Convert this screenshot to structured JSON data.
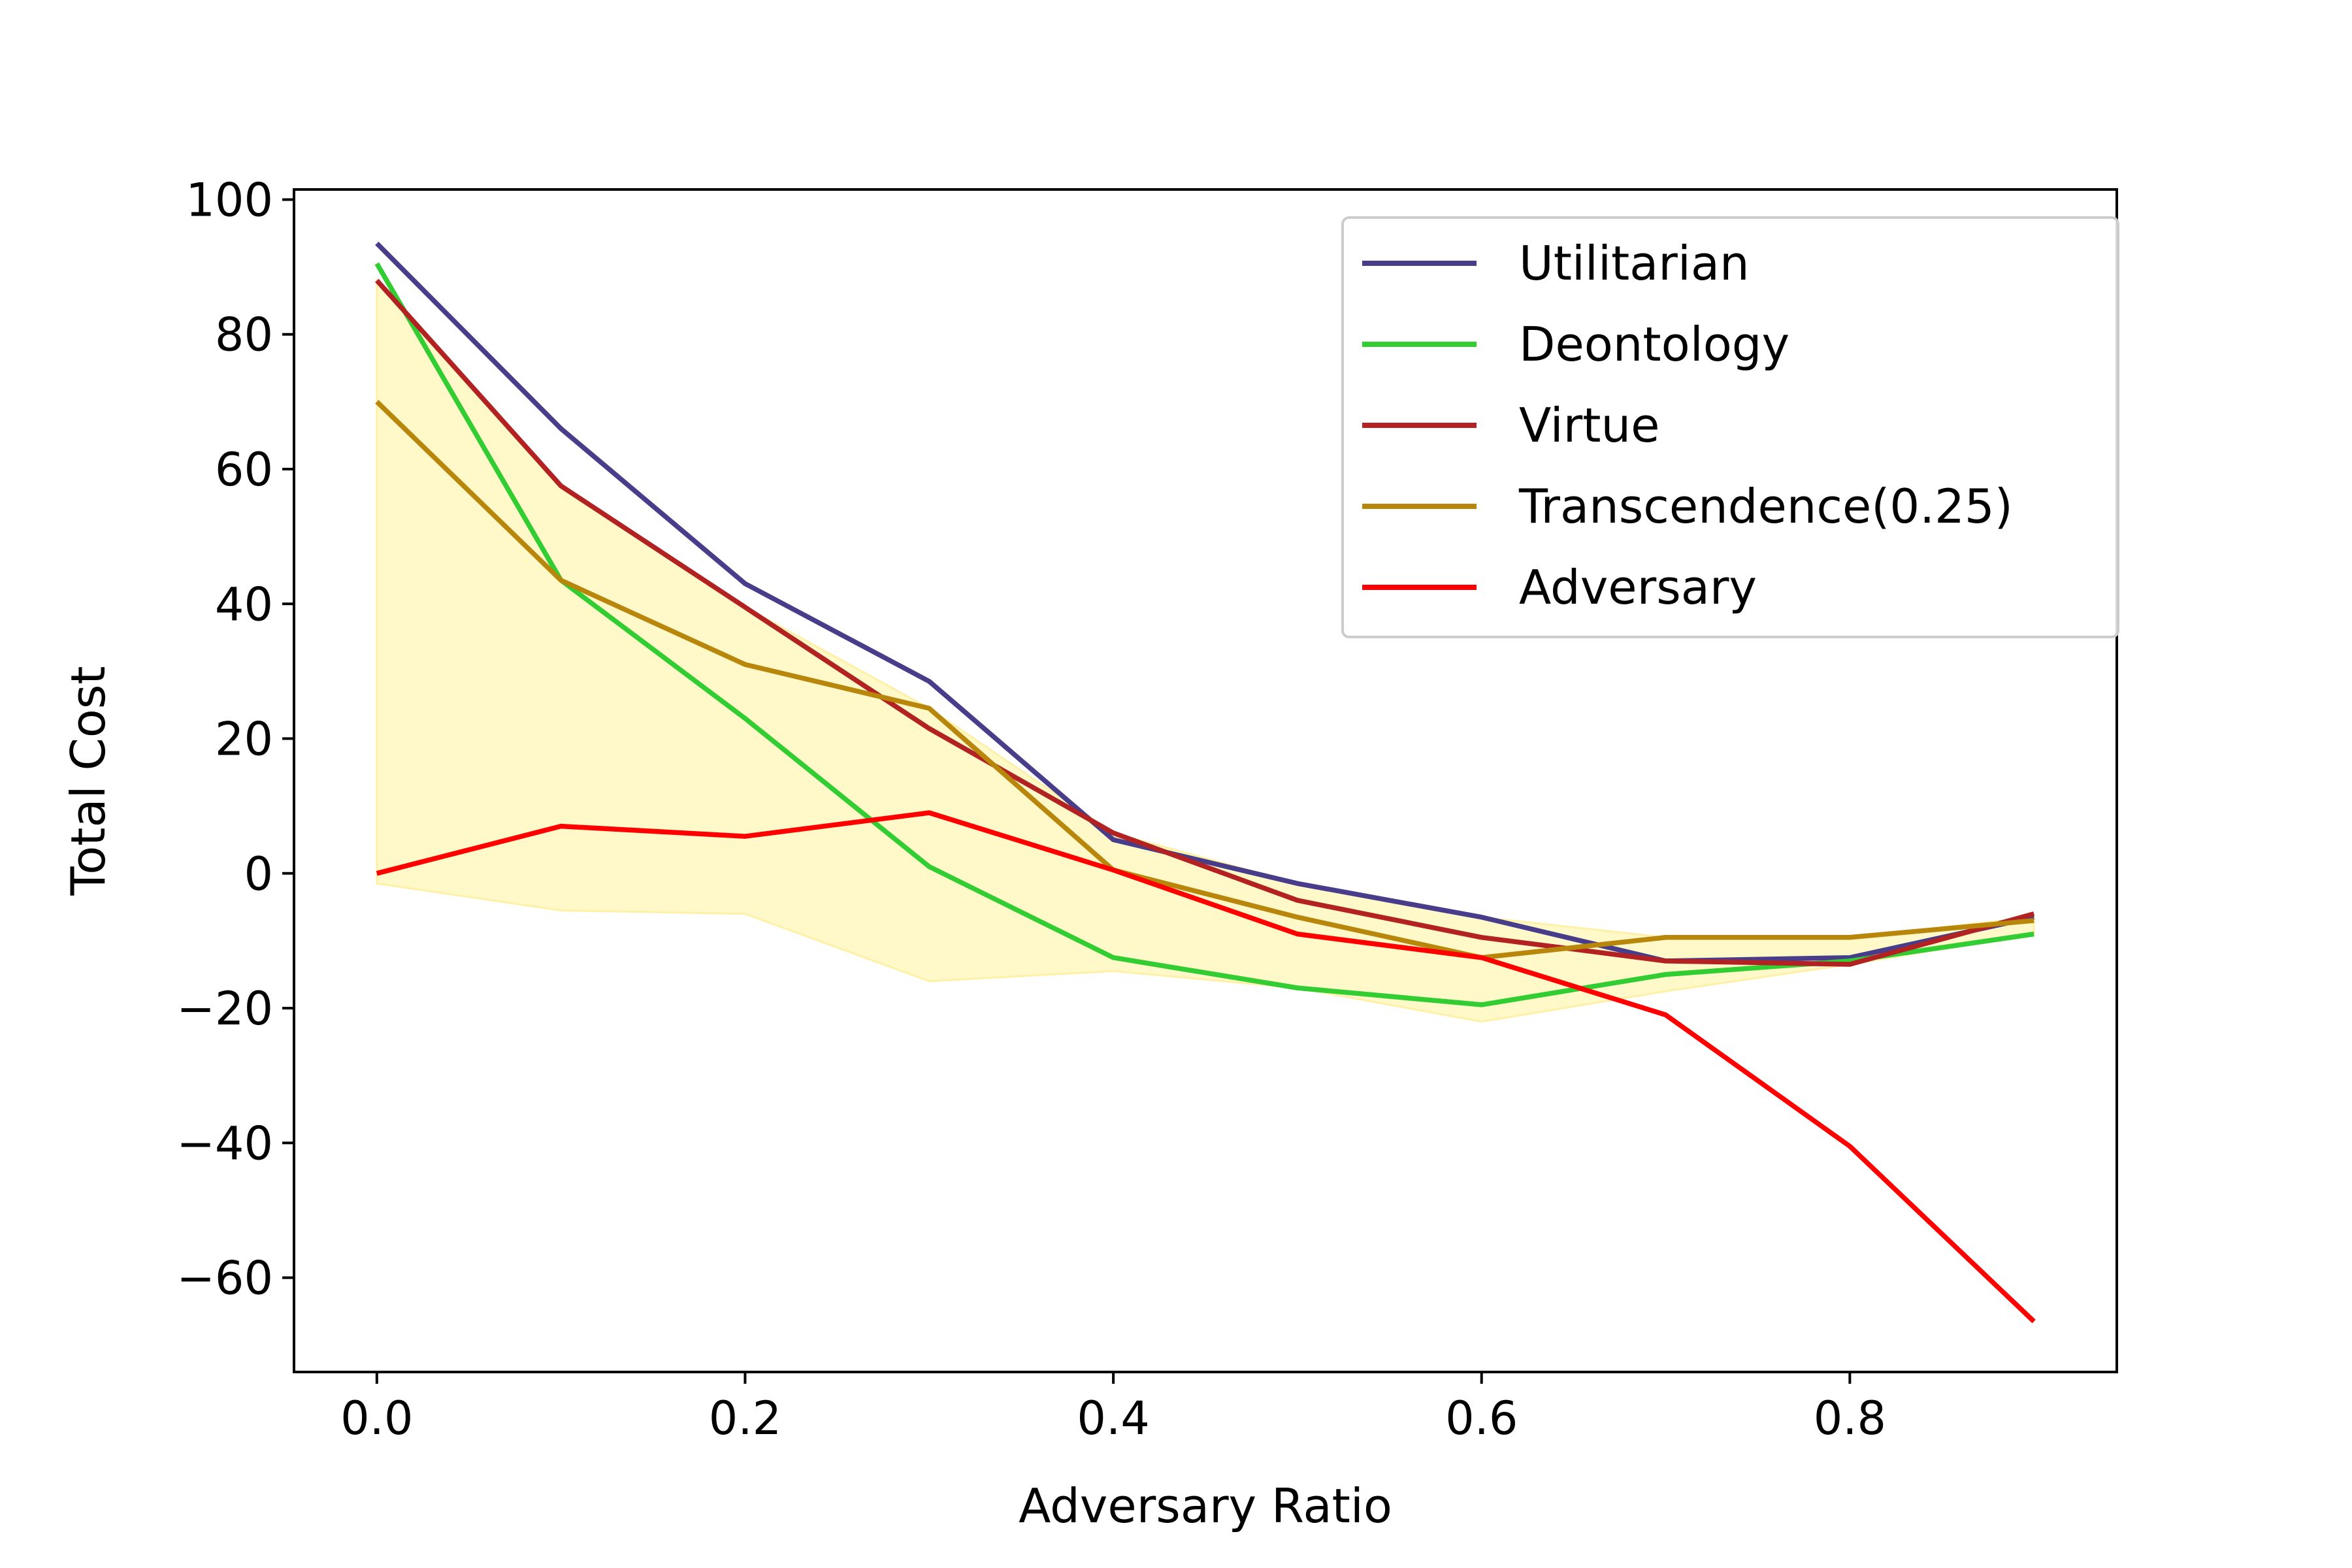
{
  "chart_data": {
    "type": "line",
    "title": "",
    "xlabel": "Adversary Ratio",
    "ylabel": "Total Cost",
    "xlim": [
      -0.045,
      0.945
    ],
    "ylim": [
      -74,
      101.5
    ],
    "grid": false,
    "legend_position": "top-right",
    "x": [
      0.0,
      0.1,
      0.2,
      0.3,
      0.4,
      0.5,
      0.6,
      0.7,
      0.8,
      0.9
    ],
    "x_ticks": [
      {
        "value": 0.0,
        "label": "0.0"
      },
      {
        "value": 0.2,
        "label": "0.2"
      },
      {
        "value": 0.4,
        "label": "0.4"
      },
      {
        "value": 0.6,
        "label": "0.6"
      },
      {
        "value": 0.8,
        "label": "0.8"
      }
    ],
    "y_ticks": [
      {
        "value": 100,
        "label": "100"
      },
      {
        "value": 80,
        "label": "80"
      },
      {
        "value": 60,
        "label": "60"
      },
      {
        "value": 40,
        "label": "40"
      },
      {
        "value": 20,
        "label": "20"
      },
      {
        "value": 0,
        "label": "0"
      },
      {
        "value": -20,
        "label": "−20"
      },
      {
        "value": -40,
        "label": "−40"
      },
      {
        "value": -60,
        "label": "−60"
      }
    ],
    "series": [
      {
        "name": "Utilitarian",
        "color": "#483d8b",
        "values": [
          93.5,
          66,
          43,
          28.5,
          5,
          -1.5,
          -6.5,
          -13,
          -12.5,
          -6.5
        ]
      },
      {
        "name": "Deontology",
        "color": "#32cd32",
        "values": [
          90.5,
          43.5,
          23,
          1,
          -12.5,
          -17,
          -19.5,
          -15,
          -13,
          -9
        ]
      },
      {
        "name": "Virtue",
        "color": "#b22222",
        "values": [
          88,
          57.5,
          39.5,
          21.5,
          6,
          -4,
          -9.5,
          -13,
          -13.5,
          -6
        ]
      },
      {
        "name": "Transcendence(0.25)",
        "color": "#b8860b",
        "values": [
          70,
          43.5,
          31,
          24.5,
          0.5,
          -6.5,
          -12.5,
          -9.5,
          -9.5,
          -7
        ]
      },
      {
        "name": "Adversary",
        "color": "#ff0000",
        "values": [
          0,
          7,
          5.5,
          9,
          0.5,
          -9,
          -12.5,
          -21,
          -40.5,
          -66.5
        ]
      }
    ],
    "band": {
      "color": "#fff8c8",
      "upper": [
        88,
        57.5,
        39.5,
        24.5,
        6,
        -1.5,
        -6.5,
        -9.5,
        -9.5,
        -6.5
      ],
      "lower": [
        -1.5,
        -5.5,
        -6,
        -16,
        -14.5,
        -17,
        -22,
        -17.5,
        -13.5,
        -9
      ]
    }
  }
}
